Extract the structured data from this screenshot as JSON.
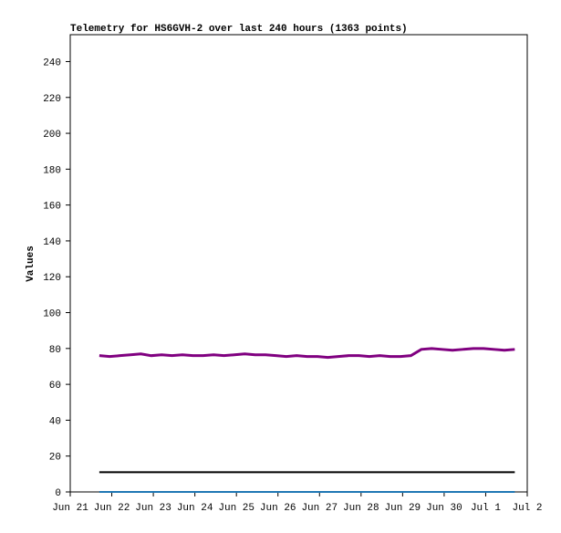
{
  "chart_data": {
    "type": "line",
    "title": "Telemetry for HS6GVH-2 over last 240 hours (1363 points)",
    "ylabel": "Values",
    "xlim": [
      21,
      32
    ],
    "xticks": [
      {
        "value": 21,
        "label": "Jun 21"
      },
      {
        "value": 22,
        "label": "Jun 22"
      },
      {
        "value": 23,
        "label": "Jun 23"
      },
      {
        "value": 24,
        "label": "Jun 24"
      },
      {
        "value": 25,
        "label": "Jun 25"
      },
      {
        "value": 26,
        "label": "Jun 26"
      },
      {
        "value": 27,
        "label": "Jun 27"
      },
      {
        "value": 28,
        "label": "Jun 28"
      },
      {
        "value": 29,
        "label": "Jun 29"
      },
      {
        "value": 30,
        "label": "Jun 30"
      },
      {
        "value": 31,
        "label": "Jul 1"
      },
      {
        "value": 32,
        "label": "Jul 2"
      }
    ],
    "ylim": [
      0,
      255
    ],
    "yticks": [
      0,
      20,
      40,
      60,
      80,
      100,
      120,
      140,
      160,
      180,
      200,
      220,
      240
    ],
    "grid": false,
    "series": [
      {
        "color": "#800080",
        "x": [
          21.7,
          21.95,
          22.2,
          22.45,
          22.7,
          22.95,
          23.2,
          23.45,
          23.7,
          23.95,
          24.2,
          24.45,
          24.7,
          24.95,
          25.2,
          25.45,
          25.7,
          25.95,
          26.2,
          26.45,
          26.7,
          26.95,
          27.2,
          27.45,
          27.7,
          27.95,
          28.2,
          28.45,
          28.7,
          28.95,
          29.2,
          29.45,
          29.7,
          29.95,
          30.2,
          30.45,
          30.7,
          30.95,
          31.2,
          31.45,
          31.7
        ],
        "values": [
          76,
          75.5,
          76,
          76.5,
          77,
          76,
          76.5,
          76,
          76.5,
          76,
          76,
          76.5,
          76,
          76.5,
          77,
          76.5,
          76.5,
          76,
          75.5,
          76,
          75.5,
          75.5,
          75,
          75.5,
          76,
          76,
          75.5,
          76,
          75.5,
          75.5,
          76,
          79.5,
          80,
          79.5,
          79,
          79.5,
          80,
          80,
          79.5,
          79,
          79.5
        ]
      },
      {
        "color": "#000000",
        "x": [
          21.7,
          31.7
        ],
        "values": [
          11,
          11
        ]
      },
      {
        "color": "#1f77b4",
        "x": [
          21.7,
          31.7
        ],
        "values": [
          0,
          0
        ]
      }
    ]
  }
}
